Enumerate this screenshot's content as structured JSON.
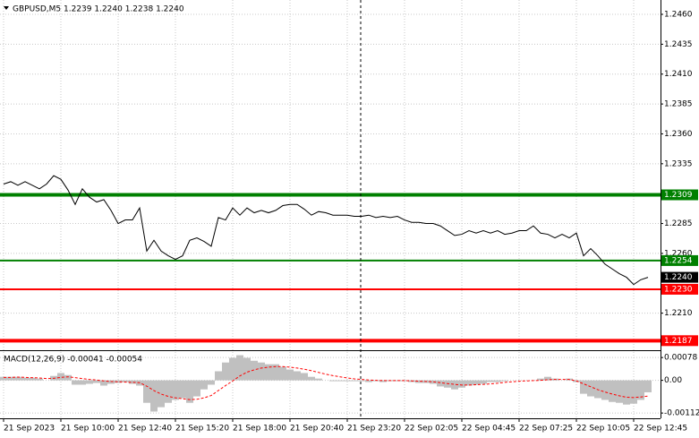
{
  "chart_data": [
    {
      "type": "line",
      "title": "GBPUSD,M5 1.2239 1.2240 1.2238 1.2240",
      "color": "#000000",
      "grid": true,
      "categories": [
        "21 Sep 2023",
        null,
        null,
        null,
        null,
        null,
        null,
        null,
        "21 Sep 10:00",
        null,
        null,
        null,
        null,
        null,
        null,
        null,
        "21 Sep 12:40",
        null,
        null,
        null,
        null,
        null,
        null,
        null,
        "21 Sep 15:20",
        null,
        null,
        null,
        null,
        null,
        null,
        null,
        "21 Sep 18:00",
        null,
        null,
        null,
        null,
        null,
        null,
        null,
        "21 Sep 20:40",
        null,
        null,
        null,
        null,
        null,
        null,
        null,
        "21 Sep 23:20",
        null,
        null,
        null,
        null,
        null,
        null,
        null,
        "22 Sep 02:05",
        null,
        null,
        null,
        null,
        null,
        null,
        null,
        "22 Sep 04:45",
        null,
        null,
        null,
        null,
        null,
        null,
        null,
        "22 Sep 07:25",
        null,
        null,
        null,
        null,
        null,
        null,
        null,
        "22 Sep 10:05",
        null,
        null,
        null,
        null,
        null,
        null,
        null,
        "22 Sep 12:45",
        null,
        null
      ],
      "values": [
        1.2318,
        1.232,
        1.2317,
        1.232,
        1.2317,
        1.2314,
        1.2318,
        1.2325,
        1.2322,
        1.2313,
        1.2301,
        1.2314,
        1.2307,
        1.2303,
        1.2305,
        1.2296,
        1.2285,
        1.2288,
        1.2288,
        1.2298,
        1.2262,
        1.2271,
        1.2262,
        1.2258,
        1.2255,
        1.2258,
        1.2271,
        1.2273,
        1.227,
        1.2266,
        1.229,
        1.2288,
        1.2298,
        1.2292,
        1.2298,
        1.2294,
        1.2296,
        1.2294,
        1.2296,
        1.23,
        1.2301,
        1.2301,
        1.2297,
        1.2292,
        1.2295,
        1.2294,
        1.2292,
        1.2292,
        1.2292,
        1.2291,
        1.2291,
        1.2292,
        1.229,
        1.2291,
        1.229,
        1.2291,
        1.2288,
        1.2286,
        1.2286,
        1.2285,
        1.2285,
        1.2283,
        1.2279,
        1.2275,
        1.2276,
        1.2279,
        1.2277,
        1.2279,
        1.2277,
        1.2279,
        1.2276,
        1.2277,
        1.2279,
        1.2279,
        1.2283,
        1.2277,
        1.2276,
        1.2273,
        1.2276,
        1.2273,
        1.2277,
        1.2258,
        1.2264,
        1.2258,
        1.2251,
        1.2247,
        1.2243,
        1.224,
        1.2234,
        1.2238,
        1.224
      ],
      "ylim": [
        1.2179,
        1.2472
      ],
      "yticks": [
        {
          "value": 1.246,
          "label": "1.2460"
        },
        1.2435,
        {
          "value": 1.241,
          "label": "1.2410"
        },
        1.2385,
        {
          "value": 1.236,
          "label": "1.2360"
        },
        1.2335,
        1.2285,
        {
          "value": 1.226,
          "label": "1.2260"
        },
        {
          "value": 1.221,
          "label": "1.2210"
        }
      ],
      "levels": [
        {
          "value": 1.2309,
          "color": "#008000",
          "line_width": 4
        },
        {
          "value": 1.2254,
          "color": "#008000",
          "line_width": 2
        },
        {
          "value": 1.223,
          "label": "1.2230",
          "color": "#ff0000",
          "line_width": 2
        },
        {
          "value": 1.2187,
          "color": "#ff0000",
          "line_width": 4
        }
      ],
      "last_price": {
        "value": 1.224,
        "label": "1.2240"
      }
    },
    {
      "type": "macd",
      "title": "MACD(12,26,9) -0.00041 -0.00054",
      "grid": true,
      "histogram": {
        "color": "#c0c0c0",
        "values": [
          0.00012,
          0.00012,
          0.00012,
          9e-05,
          9e-05,
          6e-05,
          0,
          0.00015,
          0.00025,
          0.00018,
          -0.00015,
          -0.00015,
          -0.00012,
          -9e-05,
          -0.00018,
          -0.00012,
          -9e-05,
          -6e-05,
          -0.00012,
          -0.00018,
          -0.00077,
          -0.00107,
          -0.00092,
          -0.00077,
          -0.00067,
          -0.00061,
          -0.00077,
          -0.00055,
          -0.00031,
          -0.00015,
          0.00031,
          0.00061,
          0.00077,
          0.00086,
          0.00077,
          0.00067,
          0.00061,
          0.00055,
          0.00055,
          0.00046,
          0.00037,
          0.00031,
          0.00025,
          0.00012,
          6e-05,
          0,
          -3e-05,
          -3e-05,
          -3e-05,
          -3e-05,
          -3e-05,
          -6e-05,
          -3e-05,
          -6e-05,
          -3e-05,
          -3e-05,
          -3e-05,
          -6e-05,
          -9e-05,
          -9e-05,
          -0.00012,
          -0.00021,
          -0.00025,
          -0.00031,
          -0.00025,
          -0.00018,
          -0.00015,
          -0.00012,
          -6e-05,
          -6e-05,
          -3e-05,
          0,
          0,
          0,
          0,
          6e-05,
          0.00012,
          6e-05,
          0,
          6e-05,
          -6e-05,
          -0.00046,
          -0.00055,
          -0.00061,
          -0.00067,
          -0.00074,
          -0.00077,
          -0.00083,
          -0.0008,
          -0.00067,
          -0.00041
        ]
      },
      "signal": {
        "color": "#ff0000",
        "values": [
          0.0001,
          0.0001,
          0.00011,
          0.0001,
          9e-05,
          8e-05,
          6e-05,
          7e-05,
          0.0001,
          0.00012,
          9e-05,
          6e-05,
          3e-05,
          1e-05,
          -2e-05,
          -4e-05,
          -5e-05,
          -6e-05,
          -7e-05,
          -8e-05,
          -0.0002,
          -0.00035,
          -0.00047,
          -0.00055,
          -0.0006,
          -0.00063,
          -0.00066,
          -0.00065,
          -0.0006,
          -0.00052,
          -0.00035,
          -0.00018,
          -2e-05,
          0.00015,
          0.00028,
          0.00036,
          0.00042,
          0.00045,
          0.00047,
          0.00047,
          0.00045,
          0.00042,
          0.00038,
          0.00033,
          0.00027,
          0.00021,
          0.00016,
          0.00012,
          8e-05,
          5e-05,
          3e-05,
          1e-05,
          0,
          -1e-05,
          -1e-05,
          -1e-05,
          -1e-05,
          -2e-05,
          -3e-05,
          -4e-05,
          -5e-05,
          -8e-05,
          -0.00011,
          -0.00014,
          -0.00016,
          -0.00016,
          -0.00015,
          -0.00014,
          -0.00012,
          -0.0001,
          -7e-05,
          -5e-05,
          -3e-05,
          -2e-05,
          -1e-05,
          0,
          2e-05,
          3e-05,
          3e-05,
          3e-05,
          -2e-05,
          -0.00012,
          -0.00022,
          -0.00032,
          -0.0004,
          -0.00047,
          -0.00053,
          -0.00058,
          -0.00059,
          -0.00057,
          -0.00054
        ]
      },
      "ylim": [
        -0.0013,
        0.001
      ],
      "yticks": [
        0.00078,
        {
          "value": 0,
          "label": "0.00"
        },
        -0.00112
      ]
    }
  ]
}
